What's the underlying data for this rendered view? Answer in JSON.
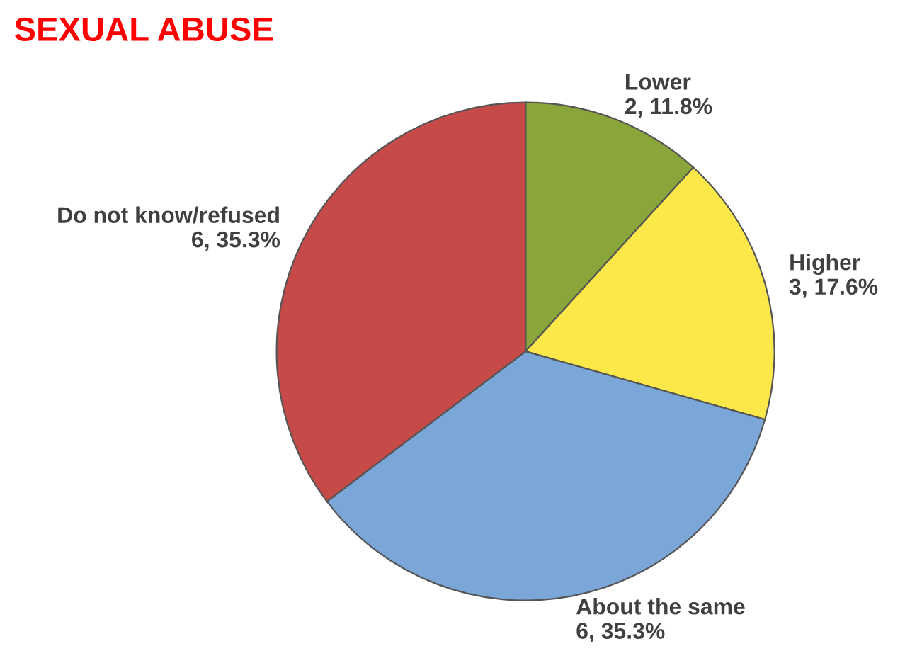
{
  "chart_data": {
    "type": "pie",
    "title": "SEXUAL ABUSE",
    "categories": [
      "Lower",
      "Higher",
      "About the same",
      "Do not know/refused"
    ],
    "values": [
      2,
      3,
      6,
      6
    ],
    "value_labels": [
      "2, 11.8%",
      "3, 17.6%",
      "6, 35.3%",
      "6, 35.3%"
    ],
    "colors": [
      "#8aa63a",
      "#fde84a",
      "#7ba6d8",
      "#c64a48"
    ],
    "legend": false
  }
}
